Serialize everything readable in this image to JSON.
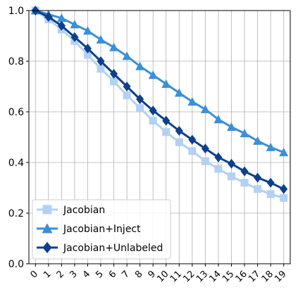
{
  "chart_data": {
    "type": "line",
    "title": "",
    "xlabel": "",
    "ylabel": "",
    "x": [
      0,
      1,
      2,
      3,
      4,
      5,
      6,
      7,
      8,
      9,
      10,
      11,
      12,
      13,
      14,
      15,
      16,
      17,
      18,
      19
    ],
    "xlim": [
      -0.5,
      19.5
    ],
    "ylim": [
      0.0,
      1.0
    ],
    "yticks": [
      0.0,
      0.2,
      0.4,
      0.6,
      0.8,
      1.0
    ],
    "ytick_labels": [
      "0.0",
      "0.2",
      "0.4",
      "0.6",
      "0.8",
      "1.0"
    ],
    "xtick_labels": [
      "0",
      "1",
      "2",
      "3",
      "4",
      "5",
      "6",
      "7",
      "8",
      "9",
      "10",
      "11",
      "12",
      "13",
      "14",
      "15",
      "16",
      "17",
      "18",
      "19"
    ],
    "grid": true,
    "legend_position": "bottom-left",
    "series": [
      {
        "name": "Jacobian",
        "color": "#b3d1f2",
        "marker": "square",
        "values": [
          1.0,
          0.965,
          0.925,
          0.88,
          0.825,
          0.77,
          0.72,
          0.665,
          0.615,
          0.565,
          0.52,
          0.48,
          0.445,
          0.405,
          0.375,
          0.345,
          0.32,
          0.295,
          0.275,
          0.26
        ]
      },
      {
        "name": "Jacobian+Inject",
        "color": "#3a8fd8",
        "marker": "triangle",
        "values": [
          1.0,
          0.985,
          0.97,
          0.945,
          0.92,
          0.885,
          0.855,
          0.82,
          0.78,
          0.745,
          0.71,
          0.675,
          0.64,
          0.61,
          0.57,
          0.54,
          0.515,
          0.485,
          0.46,
          0.44
        ]
      },
      {
        "name": "Jacobian+Unlabeled",
        "color": "#0d3f8f",
        "marker": "diamond",
        "values": [
          1.0,
          0.975,
          0.94,
          0.895,
          0.85,
          0.8,
          0.75,
          0.7,
          0.65,
          0.605,
          0.565,
          0.525,
          0.49,
          0.455,
          0.42,
          0.395,
          0.365,
          0.34,
          0.32,
          0.295
        ]
      }
    ]
  }
}
